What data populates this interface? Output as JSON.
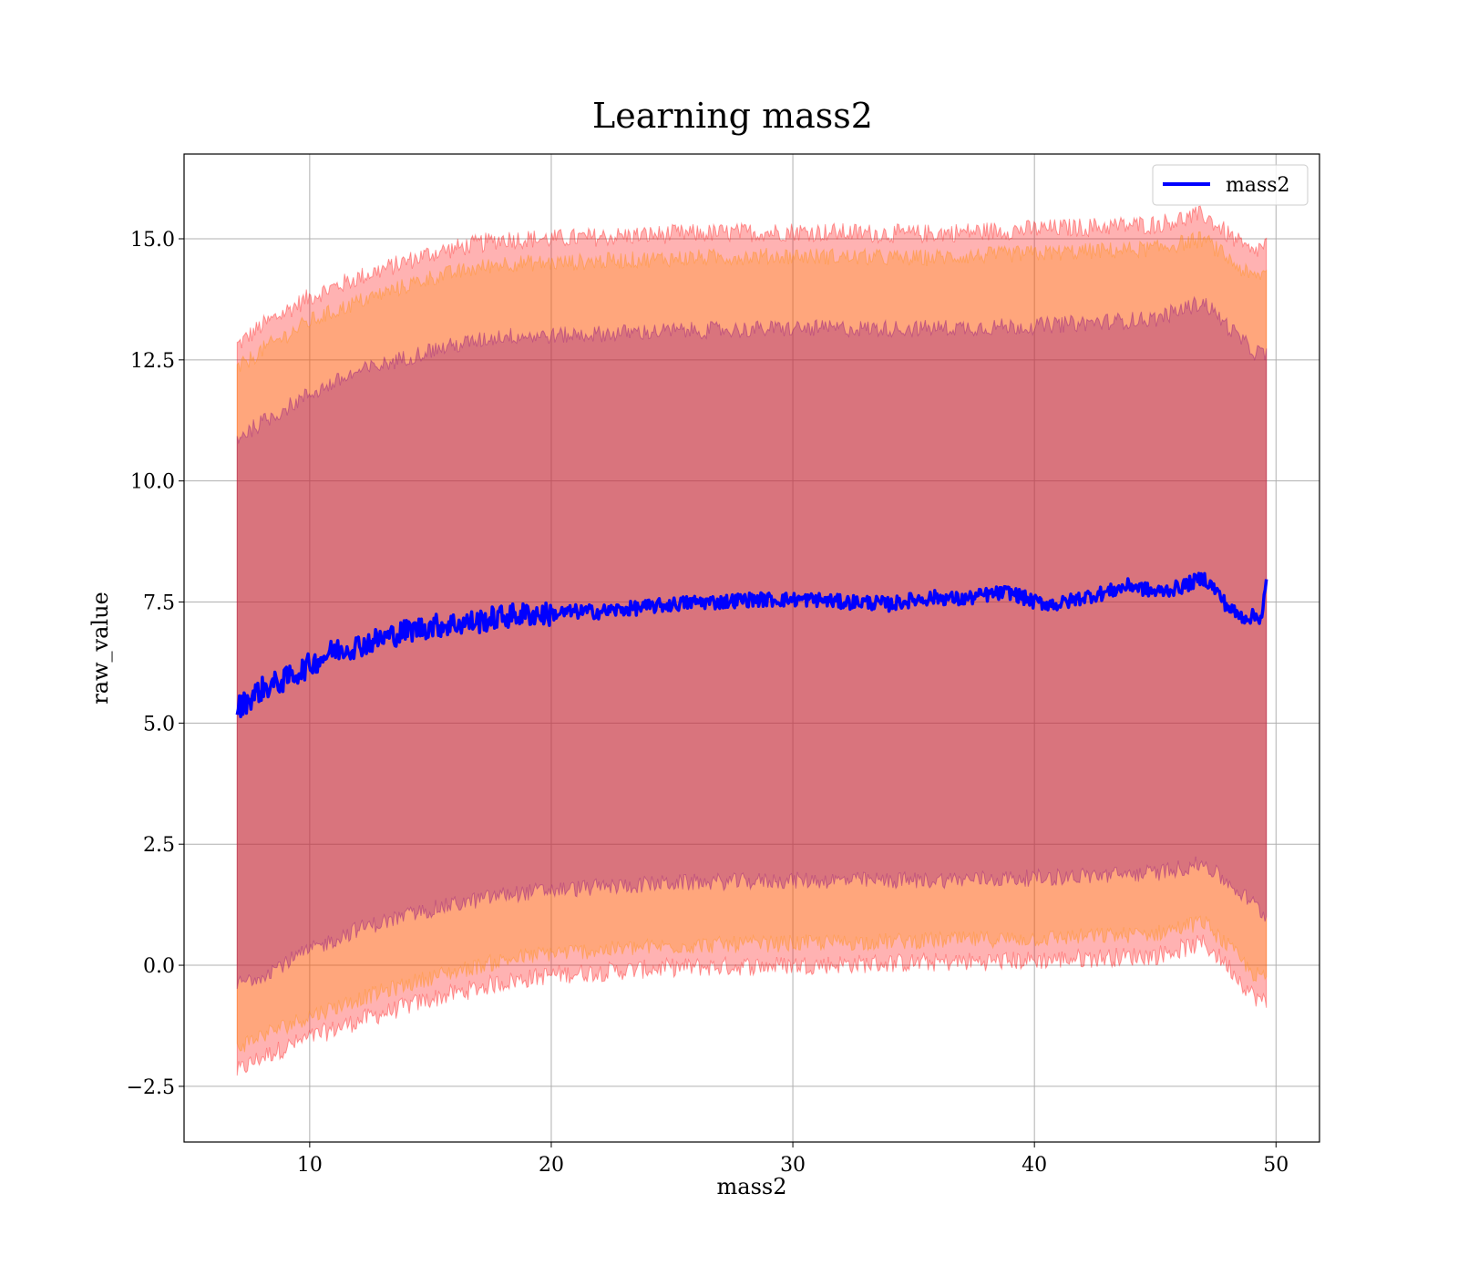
{
  "chart_data": {
    "type": "line",
    "title": "Learning mass2",
    "xlabel": "mass2",
    "ylabel": "raw_value",
    "xlim": [
      4.8,
      51.8
    ],
    "ylim": [
      -3.65,
      16.75
    ],
    "xticks": [
      10,
      20,
      30,
      40,
      50
    ],
    "yticks": [
      -2.5,
      0.0,
      2.5,
      5.0,
      7.5,
      10.0,
      12.5,
      15.0
    ],
    "xtick_labels": [
      "10",
      "20",
      "30",
      "40",
      "50"
    ],
    "ytick_labels": [
      "−2.5",
      "0.0",
      "2.5",
      "5.0",
      "7.5",
      "10.0",
      "12.5",
      "15.0"
    ],
    "grid": true,
    "legend_position": "top-right",
    "series": [
      {
        "name": "mass2",
        "color": "#0000ff",
        "x": [
          7.0,
          7.5,
          8.0,
          9.0,
          10.0,
          11.0,
          12.0,
          13.0,
          14.0,
          15.0,
          16.0,
          17.0,
          18.0,
          19.0,
          20.0,
          21.0,
          22.0,
          23.0,
          24.0,
          25.0,
          26.0,
          27.0,
          28.0,
          29.0,
          30.0,
          31.0,
          32.0,
          33.0,
          34.0,
          35.0,
          36.0,
          37.0,
          38.0,
          39.0,
          40.0,
          41.0,
          42.0,
          43.0,
          44.0,
          45.0,
          46.0,
          47.0,
          47.5,
          48.0,
          48.5,
          49.0,
          49.4,
          49.6
        ],
        "y": [
          5.3,
          5.5,
          5.7,
          5.9,
          6.2,
          6.5,
          6.6,
          6.75,
          6.9,
          7.0,
          7.05,
          7.1,
          7.2,
          7.25,
          7.25,
          7.3,
          7.3,
          7.35,
          7.4,
          7.45,
          7.5,
          7.5,
          7.55,
          7.55,
          7.55,
          7.55,
          7.5,
          7.5,
          7.45,
          7.55,
          7.6,
          7.55,
          7.65,
          7.7,
          7.5,
          7.45,
          7.6,
          7.7,
          7.85,
          7.7,
          7.8,
          8.0,
          7.75,
          7.4,
          7.2,
          7.2,
          7.2,
          7.9
        ]
      }
    ],
    "bands": [
      {
        "color": "#ff0000",
        "opacity": 0.3,
        "x": [
          7.0,
          8.0,
          10.0,
          12.0,
          15.0,
          18.0,
          20.0,
          25.0,
          30.0,
          35.0,
          40.0,
          45.0,
          47.0,
          48.0,
          49.0,
          49.6
        ],
        "lower": [
          -2.2,
          -1.9,
          -1.5,
          -1.15,
          -0.7,
          -0.35,
          -0.2,
          -0.05,
          0.0,
          0.05,
          0.1,
          0.2,
          0.45,
          0.0,
          -0.6,
          -0.8
        ],
        "upper": [
          12.8,
          13.2,
          13.8,
          14.2,
          14.7,
          15.0,
          15.0,
          15.1,
          15.15,
          15.1,
          15.2,
          15.3,
          15.5,
          15.1,
          14.7,
          14.9
        ]
      },
      {
        "color": "#ff8c00",
        "opacity": 0.3,
        "x": [
          7.0,
          8.0,
          10.0,
          12.0,
          15.0,
          18.0,
          20.0,
          25.0,
          30.0,
          35.0,
          40.0,
          45.0,
          47.0,
          48.0,
          49.0,
          49.6
        ],
        "lower": [
          -1.7,
          -1.45,
          -1.05,
          -0.7,
          -0.25,
          0.1,
          0.25,
          0.4,
          0.45,
          0.5,
          0.55,
          0.65,
          0.9,
          0.4,
          -0.15,
          -0.3
        ],
        "upper": [
          12.3,
          12.7,
          13.3,
          13.7,
          14.2,
          14.5,
          14.5,
          14.6,
          14.65,
          14.6,
          14.7,
          14.8,
          15.0,
          14.6,
          14.2,
          14.3
        ]
      },
      {
        "color": "#800080",
        "opacity": 0.3,
        "x": [
          7.0,
          8.0,
          10.0,
          12.0,
          15.0,
          18.0,
          20.0,
          25.0,
          30.0,
          35.0,
          40.0,
          45.0,
          47.0,
          48.0,
          49.0,
          49.6
        ],
        "lower": [
          -0.4,
          -0.2,
          0.3,
          0.75,
          1.15,
          1.45,
          1.55,
          1.7,
          1.75,
          1.75,
          1.8,
          1.9,
          2.1,
          1.7,
          1.3,
          1.0
        ],
        "upper": [
          10.9,
          11.2,
          11.8,
          12.25,
          12.7,
          13.0,
          13.0,
          13.1,
          13.15,
          13.15,
          13.2,
          13.35,
          13.7,
          13.2,
          12.7,
          12.6
        ]
      }
    ]
  }
}
